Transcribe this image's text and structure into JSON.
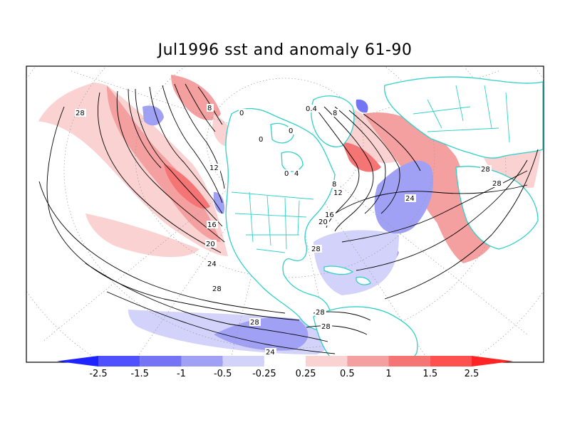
{
  "figure": {
    "title": "Jul1996 sst and anomaly 61-90",
    "projection": "polar-stereographic, North America / North Atlantic / North Pacific sector"
  },
  "colors": {
    "coastline": "#2fd0c8",
    "contour": "#000000",
    "grid": "#9a9a9a",
    "frame": "#000000"
  },
  "colorbar": {
    "levels": [
      "-2.5",
      "-1.5",
      "-1",
      "-0.5",
      "-0.25",
      "0.25",
      "0.5",
      "1",
      "1.5",
      "2.5"
    ],
    "colors": [
      "#1f24ff",
      "#4f50ff",
      "#7474f5",
      "#a0a0f5",
      "#d2d2fa",
      "#ffffff",
      "#fad2d2",
      "#f5a0a0",
      "#f57474",
      "#ff5050",
      "#ff2424"
    ]
  },
  "contour_labels": [
    {
      "text": "28"
    },
    {
      "text": "8"
    },
    {
      "text": "0"
    },
    {
      "text": "0"
    },
    {
      "text": "12"
    },
    {
      "text": "16"
    },
    {
      "text": "20"
    },
    {
      "text": "24"
    },
    {
      "text": "28"
    },
    {
      "text": "28"
    },
    {
      "text": "24"
    },
    {
      "text": "0"
    },
    {
      "text": "0.4"
    },
    {
      "text": "8"
    },
    {
      "text": "0"
    },
    {
      "text": "4"
    },
    {
      "text": "8"
    },
    {
      "text": "12"
    },
    {
      "text": "16"
    },
    {
      "text": "20"
    },
    {
      "text": "24"
    },
    {
      "text": "28"
    },
    {
      "text": "28"
    },
    {
      "text": "28"
    },
    {
      "text": "28"
    },
    {
      "text": "28"
    }
  ]
}
